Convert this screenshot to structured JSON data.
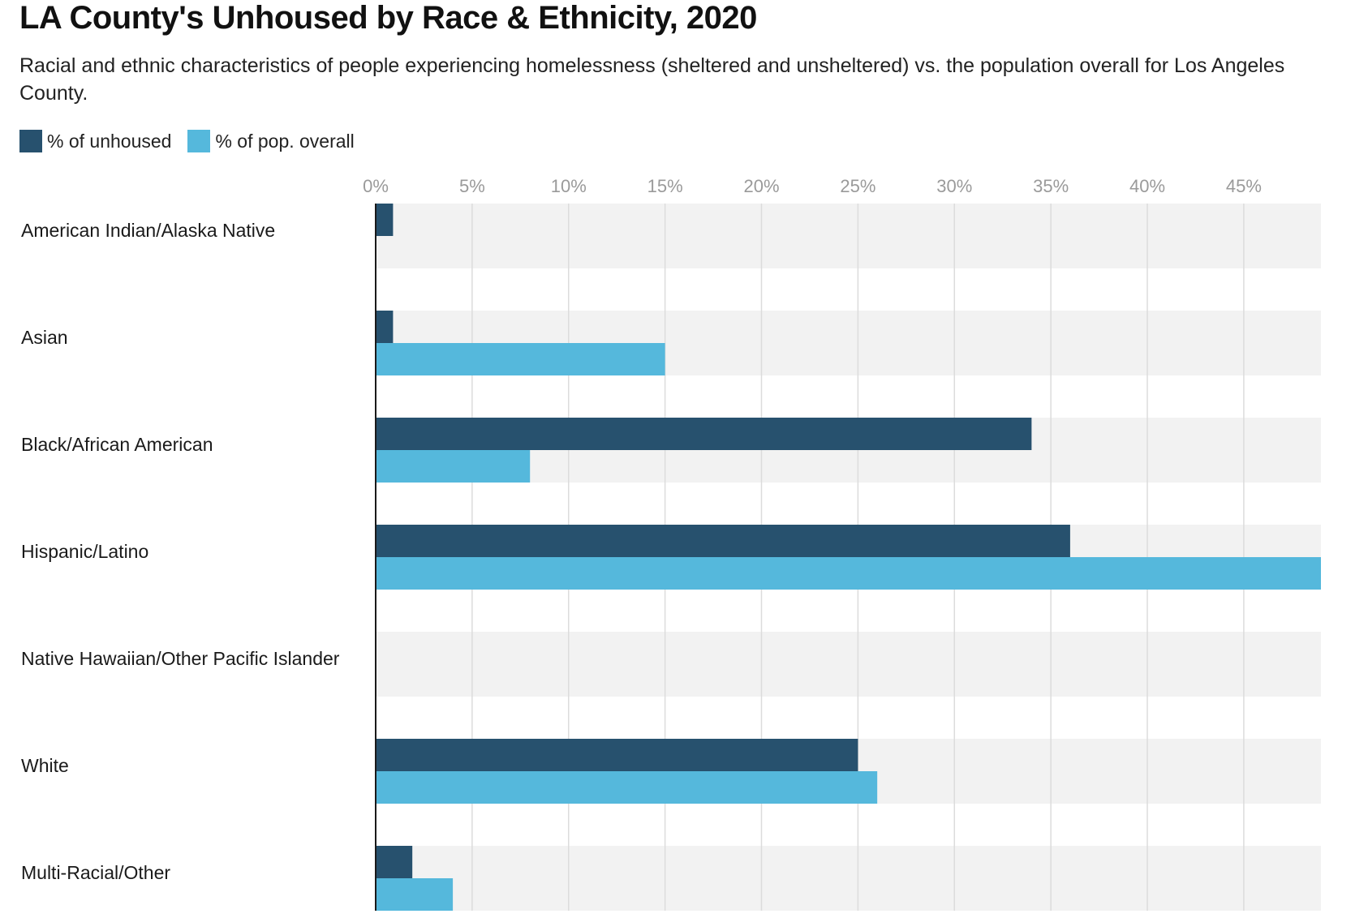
{
  "colors": {
    "unhoused": "#27516e",
    "overall": "#55b8dc",
    "band": "#f2f2f2",
    "grid": "#dcdcdc",
    "axis": "#1a1a1a"
  },
  "chart_data": {
    "type": "bar",
    "orientation": "horizontal",
    "title": "LA County's Unhoused by Race & Ethnicity, 2020",
    "subtitle": "Racial and ethnic characteristics of people experiencing homelessness (sheltered and unsheltered) vs. the population overall for Los Angeles County.",
    "legend_position": "top-left",
    "grid": true,
    "xlim": [
      0,
      49
    ],
    "ticks": [
      0,
      5,
      10,
      15,
      20,
      25,
      30,
      35,
      40,
      45
    ],
    "tick_labels": [
      "0%",
      "5%",
      "10%",
      "15%",
      "20%",
      "25%",
      "30%",
      "35%",
      "40%",
      "45%"
    ],
    "categories": [
      "American Indian/Alaska Native",
      "Asian",
      "Black/African American",
      "Hispanic/Latino",
      "Native Hawaiian/Other Pacific Islander",
      "White",
      "Multi-Racial/Other"
    ],
    "series": [
      {
        "name": "% of unhoused",
        "color_key": "unhoused",
        "values": [
          0.9,
          0.9,
          34,
          36,
          0,
          25,
          1.9
        ]
      },
      {
        "name": "% of pop. overall",
        "color_key": "overall",
        "values": [
          0,
          15,
          8,
          49,
          0,
          26,
          4
        ]
      }
    ]
  }
}
